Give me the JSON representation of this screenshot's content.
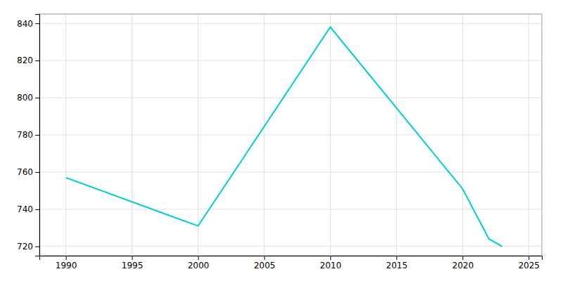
{
  "chart_data": {
    "type": "line",
    "x": [
      1990,
      2000,
      2010,
      2020,
      2022,
      2023
    ],
    "values": [
      757,
      731,
      838,
      751,
      724,
      720
    ],
    "color": "#00CED1",
    "xlim": [
      1988,
      2026
    ],
    "ylim": [
      715,
      845
    ],
    "xticks": [
      1990,
      1995,
      2000,
      2005,
      2010,
      2015,
      2020,
      2025
    ],
    "yticks": [
      720,
      740,
      760,
      780,
      800,
      820,
      840
    ],
    "grid": true
  }
}
